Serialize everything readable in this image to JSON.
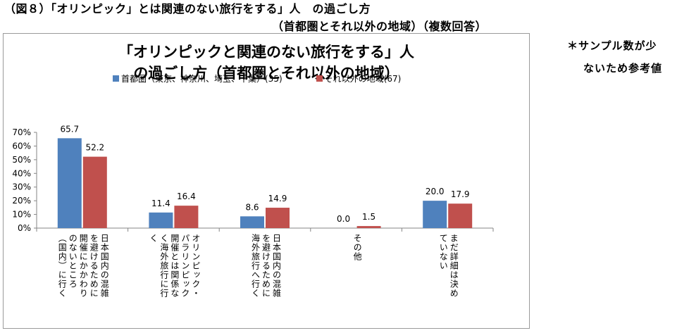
{
  "header": {
    "line1": "（図８）「オリンピック」とは関連のない旅行をする」人　の過ごし方",
    "line2": "（首都圏とそれ以外の地域）（複数回答）"
  },
  "note": {
    "line1": "＊サンプル数が少",
    "line2": "ないため参考値"
  },
  "colors": {
    "series1": "#4f81bd",
    "series2": "#c0504d",
    "axis": "#868686",
    "frame": "#9a9a9a"
  },
  "chart_data": {
    "type": "bar",
    "title": [
      "「オリンピックと関連のない旅行をする」人",
      "の過ごし方（首都圏とそれ以外の地域）"
    ],
    "categories": [
      [
        "日本国内の混雑",
        "を避けるために",
        "開催にかかわり",
        "のないところ",
        "（国内）に行く"
      ],
      [
        "オリンピック・",
        "パラリンピック",
        "開催とは関係な",
        "く海外旅行に行",
        "く"
      ],
      [
        "日本国内の混雑",
        "を避けるために",
        "海外旅行へ行く"
      ],
      [
        "その他"
      ],
      [
        "まだ詳細は決め",
        "ていない"
      ]
    ],
    "series": [
      {
        "name": "首都圏（東京、神奈川、埼玉、千葉）(35)",
        "values": [
          65.7,
          11.4,
          8.6,
          0.0,
          20.0
        ],
        "labels": [
          "65.7",
          "11.4",
          "8.6",
          "0.0",
          "20.0"
        ]
      },
      {
        "name": "それ以外の地域(67)",
        "values": [
          52.2,
          16.4,
          14.9,
          1.5,
          17.9
        ],
        "labels": [
          "52.2",
          "16.4",
          "14.9",
          "1.5",
          "17.9"
        ]
      }
    ],
    "yticks": [
      "0%",
      "10%",
      "20%",
      "30%",
      "40%",
      "50%",
      "60%",
      "70%"
    ],
    "ylim": [
      0,
      70
    ],
    "legend_position": "top",
    "grid": false
  }
}
